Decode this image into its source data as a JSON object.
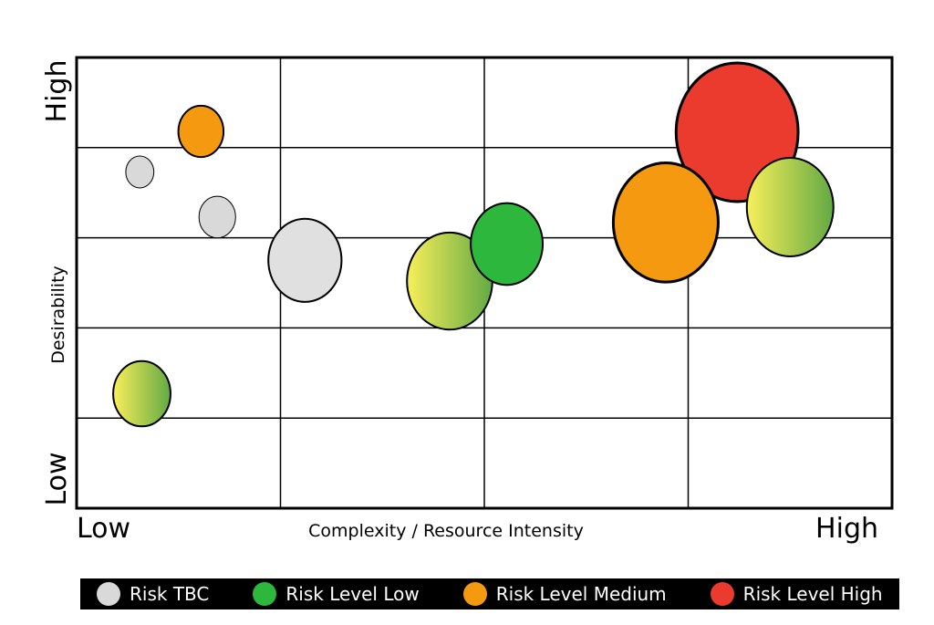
{
  "chart_data": {
    "type": "scatter",
    "subtype": "bubble",
    "title": "",
    "xlabel": "Complexity / Resource Intensity",
    "ylabel": "Desirability",
    "x_low_label": "Low",
    "x_high_label": "High",
    "y_low_label": "Low",
    "y_high_label": "High",
    "xlim": [
      0,
      4
    ],
    "ylim": [
      0,
      5
    ],
    "grid": true,
    "legend_position": "bottom",
    "legend": [
      {
        "label": "Risk TBC",
        "color": "#d9d9d9"
      },
      {
        "label": "Risk Level Low",
        "color": "#2db83d"
      },
      {
        "label": "Risk Level Medium",
        "color": "#f59a10"
      },
      {
        "label": "Risk Level High",
        "color": "#ea3b2e"
      }
    ],
    "points": [
      {
        "x": 0.31,
        "y": 3.73,
        "size": 0.23,
        "fill": "solid",
        "color": "#d9d9d9"
      },
      {
        "x": 0.61,
        "y": 4.18,
        "size": 0.37,
        "fill": "solid",
        "color": "#f59a10"
      },
      {
        "x": 0.69,
        "y": 3.23,
        "size": 0.3,
        "fill": "solid",
        "color": "#d9d9d9"
      },
      {
        "x": 1.12,
        "y": 2.75,
        "size": 0.6,
        "fill": "solid",
        "color": "#e0e0e0"
      },
      {
        "x": 0.32,
        "y": 1.27,
        "size": 0.47,
        "fill": "gradient",
        "color_from": "#f8ef5a",
        "color_to": "#62a944"
      },
      {
        "x": 1.83,
        "y": 2.52,
        "size": 0.7,
        "fill": "gradient",
        "color_from": "#f8ef5a",
        "color_to": "#62a944"
      },
      {
        "x": 2.11,
        "y": 2.93,
        "size": 0.59,
        "fill": "solid",
        "color": "#2db83d"
      },
      {
        "x": 3.24,
        "y": 4.17,
        "size": 1.0,
        "fill": "solid",
        "color": "#ea3b2e"
      },
      {
        "x": 2.89,
        "y": 3.17,
        "size": 0.86,
        "fill": "solid",
        "color": "#f59a10"
      },
      {
        "x": 3.5,
        "y": 3.34,
        "size": 0.71,
        "fill": "gradient",
        "color_from": "#f8ef5a",
        "color_to": "#62a944"
      }
    ]
  }
}
